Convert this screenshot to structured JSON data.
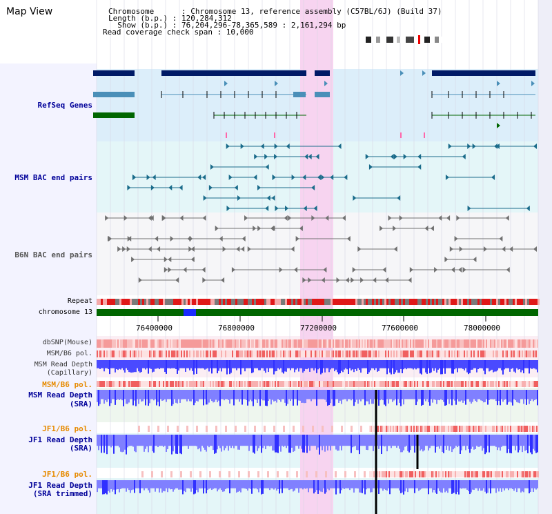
{
  "title": "Map View",
  "header": {
    "lines": [
      "Chromosome      : Chromosome 13, reference assembly (C57BL/6J) (Build 37)",
      "Length (b.p.) : 120,284,312",
      "  Show (b.p.) : 76,204,296-78,365,589 : 2,161,294 bp",
      "Read coverage check span : 10,000"
    ]
  },
  "tracks": {
    "refseq": "RefSeq Genes",
    "msm_bac": "MSM BAC end pairs",
    "b6n_bac": "B6N BAC end pairs",
    "repeat": "Repeat",
    "chromosome": "chromosome 13",
    "dbsnp": "dbSNP(Mouse)",
    "msm_b6_pol_1": "MSM/B6 pol.",
    "msm_read_cap_1": "MSM Read Depth",
    "msm_read_cap_2": "(Capillary)",
    "msm_b6_pol_2": "MSM/B6 pol.",
    "msm_read_sra_1": "MSM Read Depth",
    "msm_read_sra_2": "(SRA)",
    "jf1_b6_pol_1": "JF1/B6 pol.",
    "jf1_read_sra_1": "JF1 Read Depth",
    "jf1_read_sra_2": "(SRA)",
    "jf1_b6_pol_2": "JF1/B6 pol.",
    "jf1_read_trim_1": "JF1 Read Depth",
    "jf1_read_trim_2": "(SRA trimmed)"
  },
  "axis_ticks": [
    "76400000",
    "76800000",
    "77200000",
    "77600000",
    "78000000"
  ],
  "colors": {
    "label_blue": "#000099",
    "label_orange": "#e68a00",
    "refseq_dark": "#001a66",
    "refseq_mid": "#4a8fb8",
    "refseq_green": "#006600",
    "msm_bac": "#1a6b8a",
    "b6n_bac": "#707070",
    "highlight": "#f7d4f0",
    "chrom_bar": "#006600",
    "depth_blue": "#3030ff",
    "depth_light": "#8080ff"
  }
}
